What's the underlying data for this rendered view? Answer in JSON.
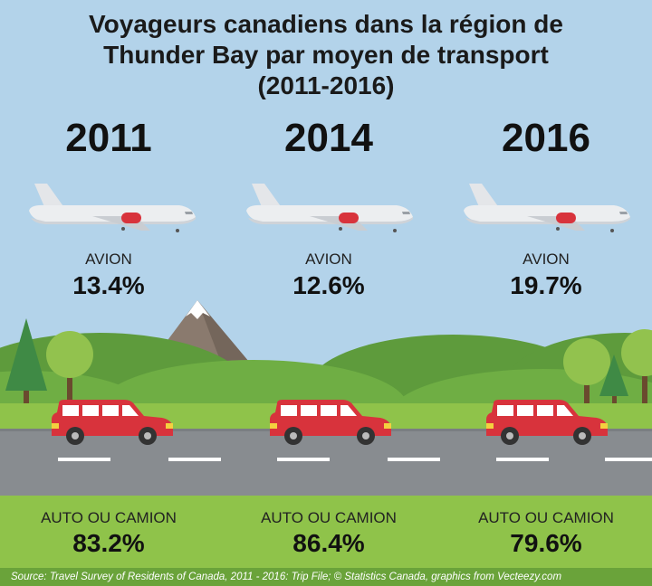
{
  "title_line1": "Voyageurs canadiens dans la région de",
  "title_line2": "Thunder Bay par moyen de transport",
  "title_line3": "(2011-2016)",
  "source": "Source: Travel Survey of Residents of Canada, 2011 - 2016: Trip File; © Statistics Canada, graphics from Vecteezy.com",
  "colors": {
    "sky": "#b3d3ea",
    "grass": "#8fc34a",
    "road": "#888c90",
    "car": "#d8333c",
    "mountain": "#8a7a6e",
    "plane": "#eceef0"
  },
  "icons": [
    "airplane-icon",
    "car-icon",
    "mountain-icon",
    "tree-icon"
  ],
  "chart_data": {
    "type": "table",
    "title": "Voyageurs canadiens dans la région de Thunder Bay par moyen de transport (2011-2016)",
    "categories": [
      "2011",
      "2014",
      "2016"
    ],
    "series": [
      {
        "name": "AVION",
        "values": [
          13.4,
          12.6,
          19.7
        ],
        "labels": [
          "13.4%",
          "12.6%",
          "19.7%"
        ]
      },
      {
        "name": "AUTO OU CAMION",
        "values": [
          83.2,
          86.4,
          79.6
        ],
        "labels": [
          "83.2%",
          "86.4%",
          "79.6%"
        ]
      }
    ]
  }
}
